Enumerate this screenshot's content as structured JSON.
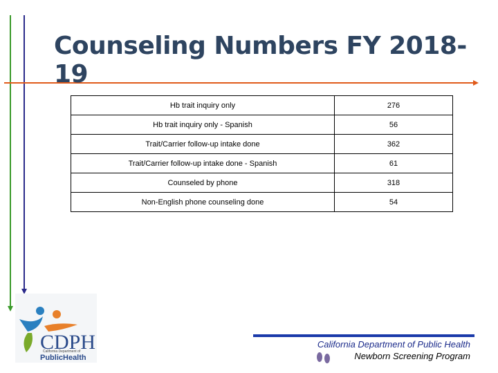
{
  "header": {
    "title": "Counseling Numbers FY 2018-19"
  },
  "table": {
    "rows": [
      [
        "Hb trait inquiry only",
        "276"
      ],
      [
        "Hb trait inquiry only - Spanish",
        "56"
      ],
      [
        "Trait/Carrier follow-up intake done",
        "362"
      ],
      [
        "Trait/Carrier follow-up intake done - Spanish",
        "61"
      ],
      [
        "Counseled by phone",
        "318"
      ],
      [
        "Non-English phone counseling done",
        "54"
      ]
    ]
  },
  "logo": {
    "text": "CDPH",
    "subtext": "California Department of",
    "brand": "PublicHealth"
  },
  "footer": {
    "line1": "California Department of Public Health",
    "line2": "Newborn Screening Program"
  }
}
